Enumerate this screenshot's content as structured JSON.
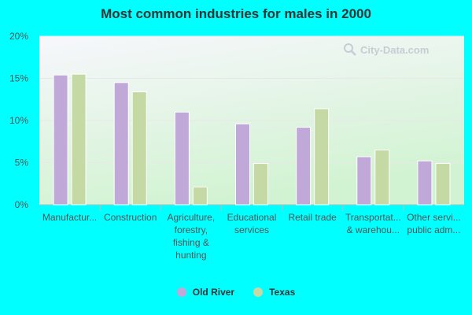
{
  "chart_data": {
    "type": "bar",
    "title": "Most common industries for males in 2000",
    "categories": [
      [
        "Manufactur..."
      ],
      [
        "Construction"
      ],
      [
        "Agriculture,",
        "forestry,",
        "fishing &",
        "hunting"
      ],
      [
        "Educational",
        "services"
      ],
      [
        "Retail trade"
      ],
      [
        "Transportat...",
        "& warehou..."
      ],
      [
        "Other servi...",
        "public adm..."
      ]
    ],
    "series": [
      {
        "name": "Old River",
        "color": "#c0a8d8",
        "values": [
          15.4,
          14.5,
          11.0,
          9.6,
          9.2,
          5.7,
          5.2
        ]
      },
      {
        "name": "Texas",
        "color": "#c5d9a5",
        "values": [
          15.5,
          13.4,
          2.1,
          4.9,
          11.4,
          6.5,
          4.9
        ]
      }
    ],
    "ylim": [
      0,
      20
    ],
    "yticks": [
      0,
      5,
      10,
      15,
      20
    ],
    "ytick_labels": [
      "0%",
      "5%",
      "10%",
      "15%",
      "20%"
    ],
    "legend_position": "bottom",
    "grid": true
  },
  "watermark": {
    "text": "City-Data.com",
    "icon": "magnifier-icon"
  },
  "colors": {
    "background": "#00FFFF",
    "plot_top": "#f5f5fb",
    "plot_bottom": "#d4f5d4"
  }
}
